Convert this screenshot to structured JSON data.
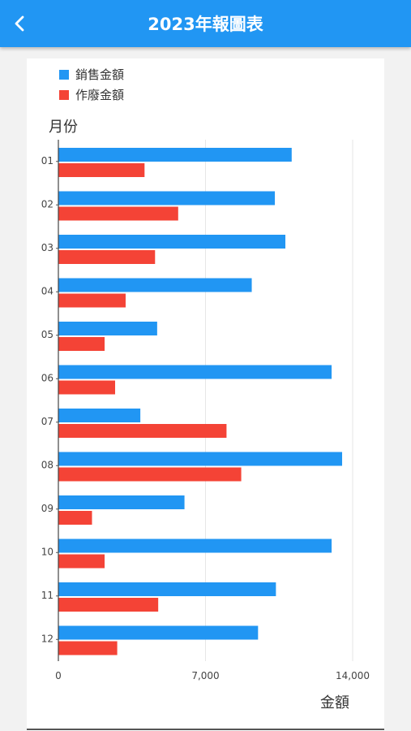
{
  "header": {
    "title": "2023年報圖表",
    "back_icon": "chevron-left-icon"
  },
  "colors": {
    "appbar": "#2196f3",
    "sales": "#2196f3",
    "void": "#f44336"
  },
  "chart_data": {
    "type": "bar",
    "orientation": "horizontal",
    "categories": [
      "01",
      "02",
      "03",
      "04",
      "05",
      "06",
      "07",
      "08",
      "09",
      "10",
      "11",
      "12"
    ],
    "series": [
      {
        "name": "銷售金額",
        "values": [
          11100,
          10300,
          10800,
          9200,
          4700,
          13000,
          3900,
          13500,
          6000,
          13000,
          10350,
          9500
        ]
      },
      {
        "name": "作廢金額",
        "values": [
          4100,
          5700,
          4600,
          3200,
          2200,
          2700,
          8000,
          8700,
          1600,
          2200,
          4750,
          2800
        ]
      }
    ],
    "xlabel": "金額",
    "ylabel": "月份",
    "xlim": [
      0,
      14000
    ],
    "xticks": [
      0,
      7000,
      14000
    ],
    "xtick_labels": [
      "0",
      "7,000",
      "14,000"
    ],
    "grid": true,
    "legend_position": "top-left"
  }
}
